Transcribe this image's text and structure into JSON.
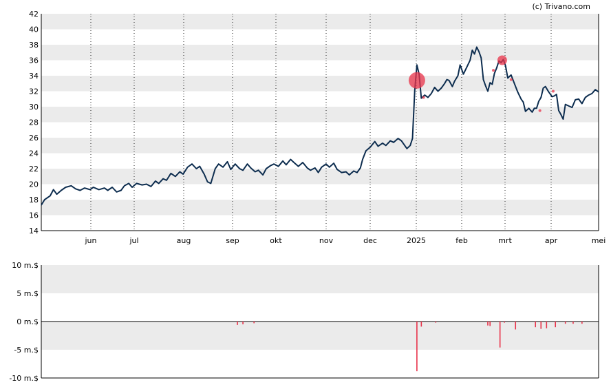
{
  "credit": "(c) Trivano.com",
  "colors": {
    "price_line": "#0d2d4f",
    "band": "#ebebeb",
    "marker": "#e8334a",
    "vline": "#222222",
    "axis": "#000000"
  },
  "chart_data": [
    {
      "type": "line",
      "grid": true,
      "y_ticks": [
        "14",
        "16",
        "18",
        "20",
        "22",
        "24",
        "26",
        "28",
        "30",
        "32",
        "34",
        "36",
        "38",
        "40",
        "42"
      ],
      "x_ticks": [
        "jun",
        "jul",
        "aug",
        "sep",
        "okt",
        "nov",
        "dec",
        "2025",
        "feb",
        "mrt",
        "apr",
        "mei"
      ],
      "ylim": [
        14,
        42
      ],
      "series": [
        {
          "values": [
            [
              0,
              17.3
            ],
            [
              3,
              18.0
            ],
            [
              8,
              18.5
            ],
            [
              11,
              19.3
            ],
            [
              14,
              18.7
            ],
            [
              18,
              19.2
            ],
            [
              22,
              19.6
            ],
            [
              27,
              19.8
            ],
            [
              31,
              19.4
            ],
            [
              35,
              19.2
            ],
            [
              39,
              19.5
            ],
            [
              44,
              19.3
            ],
            [
              47,
              19.6
            ],
            [
              52,
              19.3
            ],
            [
              57,
              19.5
            ],
            [
              60,
              19.2
            ],
            [
              64,
              19.6
            ],
            [
              68,
              19.0
            ],
            [
              72,
              19.2
            ],
            [
              75,
              19.8
            ],
            [
              79,
              20.1
            ],
            [
              82,
              19.6
            ],
            [
              86,
              20.1
            ],
            [
              91,
              19.9
            ],
            [
              95,
              20.0
            ],
            [
              99,
              19.7
            ],
            [
              103,
              20.4
            ],
            [
              106,
              20.1
            ],
            [
              110,
              20.7
            ],
            [
              113,
              20.5
            ],
            [
              117,
              21.4
            ],
            [
              121,
              21.0
            ],
            [
              125,
              21.6
            ],
            [
              128,
              21.3
            ],
            [
              132,
              22.2
            ],
            [
              136,
              22.6
            ],
            [
              140,
              22.0
            ],
            [
              143,
              22.3
            ],
            [
              147,
              21.3
            ],
            [
              150,
              20.3
            ],
            [
              153,
              20.1
            ],
            [
              157,
              22.0
            ],
            [
              160,
              22.6
            ],
            [
              164,
              22.2
            ],
            [
              168,
              22.9
            ],
            [
              171,
              21.9
            ],
            [
              175,
              22.6
            ],
            [
              179,
              22.0
            ],
            [
              182,
              21.8
            ],
            [
              186,
              22.6
            ],
            [
              189,
              22.1
            ],
            [
              193,
              21.6
            ],
            [
              196,
              21.8
            ],
            [
              200,
              21.2
            ],
            [
              203,
              22.0
            ],
            [
              207,
              22.4
            ],
            [
              210,
              22.6
            ],
            [
              214,
              22.3
            ],
            [
              218,
              23.0
            ],
            [
              221,
              22.5
            ],
            [
              225,
              23.2
            ],
            [
              228,
              22.8
            ],
            [
              232,
              22.3
            ],
            [
              236,
              22.8
            ],
            [
              240,
              22.1
            ],
            [
              243,
              21.8
            ],
            [
              247,
              22.1
            ],
            [
              250,
              21.5
            ],
            [
              253,
              22.2
            ],
            [
              257,
              22.6
            ],
            [
              260,
              22.2
            ],
            [
              264,
              22.7
            ],
            [
              267,
              21.9
            ],
            [
              271,
              21.5
            ],
            [
              275,
              21.6
            ],
            [
              278,
              21.2
            ],
            [
              282,
              21.7
            ],
            [
              285,
              21.5
            ],
            [
              288,
              22.1
            ],
            [
              290,
              23.2
            ],
            [
              293,
              24.3
            ],
            [
              297,
              24.8
            ],
            [
              301,
              25.5
            ],
            [
              304,
              24.9
            ],
            [
              308,
              25.3
            ],
            [
              311,
              25.0
            ],
            [
              315,
              25.6
            ],
            [
              318,
              25.4
            ],
            [
              322,
              25.9
            ],
            [
              325,
              25.6
            ],
            [
              328,
              25.0
            ],
            [
              330,
              24.6
            ],
            [
              333,
              25.0
            ],
            [
              335,
              25.9
            ],
            [
              337,
              32.0
            ],
            [
              339,
              35.4
            ],
            [
              341,
              34.2
            ],
            [
              343,
              31.1
            ],
            [
              346,
              31.5
            ],
            [
              349,
              31.2
            ],
            [
              352,
              31.7
            ],
            [
              355,
              32.5
            ],
            [
              358,
              32.0
            ],
            [
              361,
              32.4
            ],
            [
              364,
              33.0
            ],
            [
              366,
              33.5
            ],
            [
              368,
              33.4
            ],
            [
              371,
              32.6
            ],
            [
              373,
              33.3
            ],
            [
              376,
              34.0
            ],
            [
              378,
              35.4
            ],
            [
              381,
              34.2
            ],
            [
              384,
              35.1
            ],
            [
              387,
              36.0
            ],
            [
              389,
              37.3
            ],
            [
              391,
              36.8
            ],
            [
              393,
              37.7
            ],
            [
              395,
              37.1
            ],
            [
              397,
              36.3
            ],
            [
              399,
              33.5
            ],
            [
              401,
              32.7
            ],
            [
              403,
              32.0
            ],
            [
              405,
              33.1
            ],
            [
              407,
              32.9
            ],
            [
              409,
              34.3
            ],
            [
              411,
              35.0
            ],
            [
              413,
              35.9
            ],
            [
              415,
              35.7
            ],
            [
              417,
              36.1
            ],
            [
              419,
              35.3
            ],
            [
              421,
              33.7
            ],
            [
              424,
              34.1
            ],
            [
              427,
              33.0
            ],
            [
              430,
              31.9
            ],
            [
              433,
              31.0
            ],
            [
              435,
              30.6
            ],
            [
              437,
              29.4
            ],
            [
              440,
              29.8
            ],
            [
              443,
              29.3
            ],
            [
              445,
              29.8
            ],
            [
              447,
              29.8
            ],
            [
              449,
              30.7
            ],
            [
              451,
              31.2
            ],
            [
              453,
              32.4
            ],
            [
              455,
              32.6
            ],
            [
              458,
              31.9
            ],
            [
              461,
              31.3
            ],
            [
              463,
              31.4
            ],
            [
              465,
              31.6
            ],
            [
              467,
              29.5
            ],
            [
              469,
              29.0
            ],
            [
              471,
              28.4
            ],
            [
              473,
              30.3
            ],
            [
              476,
              30.1
            ],
            [
              479,
              29.9
            ],
            [
              482,
              30.9
            ],
            [
              485,
              31.0
            ],
            [
              488,
              30.4
            ],
            [
              491,
              31.2
            ],
            [
              494,
              31.5
            ],
            [
              497,
              31.7
            ],
            [
              500,
              32.2
            ],
            [
              503,
              31.9
            ]
          ]
        }
      ],
      "markers": [
        {
          "x": 339,
          "y": 33.4,
          "size": "large"
        },
        {
          "x": 345,
          "y": 31.2,
          "size": "tiny"
        },
        {
          "x": 416,
          "y": 36.0,
          "size": "medium"
        },
        {
          "x": 408,
          "y": 34.7,
          "size": "tiny"
        },
        {
          "x": 424,
          "y": 33.5,
          "size": "tiny"
        },
        {
          "x": 450,
          "y": 29.5,
          "size": "tiny"
        },
        {
          "x": 462,
          "y": 32.0,
          "size": "tiny"
        }
      ]
    },
    {
      "type": "bar",
      "grid": true,
      "y_ticks": [
        "10 m.$",
        "5 m.$",
        "0 m.$",
        "-5 m.$",
        "-10 m.$"
      ],
      "ylim": [
        -10,
        10
      ],
      "values": [
        [
          177,
          -0.6
        ],
        [
          182,
          -0.5
        ],
        [
          192,
          -0.3
        ],
        [
          339,
          -8.8
        ],
        [
          343,
          -0.9
        ],
        [
          356,
          -0.2
        ],
        [
          403,
          -0.7
        ],
        [
          405,
          -0.8
        ],
        [
          414,
          -4.6
        ],
        [
          418,
          -0.2
        ],
        [
          428,
          -1.4
        ],
        [
          446,
          -1.0
        ],
        [
          451,
          -1.3
        ],
        [
          456,
          -1.2
        ],
        [
          464,
          -1.0
        ],
        [
          473,
          -0.4
        ],
        [
          480,
          -0.4
        ],
        [
          488,
          -0.4
        ]
      ]
    }
  ]
}
